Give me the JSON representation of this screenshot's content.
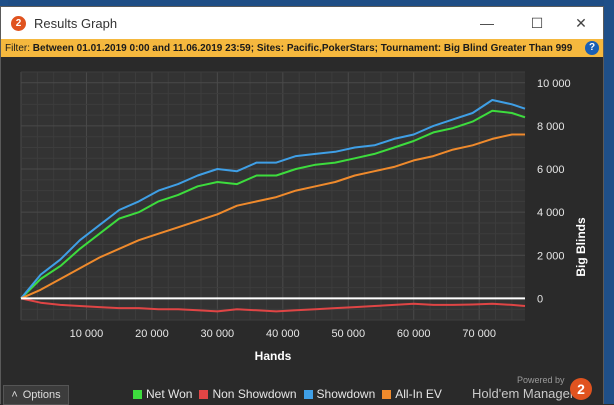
{
  "window": {
    "title": "Results Graph",
    "icon": "hm2-logo-icon",
    "controls": [
      "minimize-icon",
      "maximize-icon",
      "close-icon"
    ]
  },
  "filter": {
    "label": "Filter:",
    "text": "Between 01.01.2019 0:00 and 11.06.2019 23:59; Sites: Pacific,PokerStars; Tournament: Big Blind Greater Than 999",
    "help_icon": "?"
  },
  "footer": {
    "options_label": "Options",
    "powered_by": "Powered by",
    "brand": "Hold'em Manager",
    "brand_logo": "2"
  },
  "chart_data": {
    "type": "line",
    "xlabel": "Hands",
    "ylabel": "Big Blinds",
    "xlim": [
      0,
      77000
    ],
    "ylim": [
      -1000,
      10500
    ],
    "x_ticks": [
      10000,
      20000,
      30000,
      40000,
      50000,
      60000,
      70000
    ],
    "x_tick_labels": [
      "10 000",
      "20 000",
      "30 000",
      "40 000",
      "50 000",
      "60 000",
      "70 000"
    ],
    "y_ticks": [
      0,
      2000,
      4000,
      6000,
      8000,
      10000
    ],
    "y_tick_labels": [
      "0",
      "2 000",
      "4 000",
      "6 000",
      "8 000",
      "10 000"
    ],
    "grid": true,
    "legend_position": "bottom",
    "x": [
      0,
      3000,
      6000,
      9000,
      12000,
      15000,
      18000,
      21000,
      24000,
      27000,
      30000,
      33000,
      36000,
      39000,
      42000,
      45000,
      48000,
      51000,
      54000,
      57000,
      60000,
      63000,
      66000,
      69000,
      72000,
      75000,
      77000
    ],
    "series": [
      {
        "name": "Net Won",
        "color": "#3ddc3d",
        "values": [
          0,
          900,
          1500,
          2300,
          3000,
          3700,
          4000,
          4500,
          4800,
          5200,
          5400,
          5300,
          5700,
          5700,
          6000,
          6200,
          6300,
          6500,
          6700,
          7000,
          7300,
          7700,
          7900,
          8200,
          8700,
          8600,
          8400
        ]
      },
      {
        "name": "Non Showdown",
        "color": "#e04545",
        "values": [
          0,
          -200,
          -300,
          -350,
          -400,
          -450,
          -450,
          -500,
          -500,
          -550,
          -600,
          -500,
          -550,
          -600,
          -550,
          -500,
          -450,
          -400,
          -350,
          -300,
          -250,
          -300,
          -300,
          -280,
          -250,
          -300,
          -350
        ]
      },
      {
        "name": "Showdown",
        "color": "#3f9fe6",
        "values": [
          0,
          1100,
          1800,
          2700,
          3400,
          4100,
          4500,
          5000,
          5300,
          5700,
          6000,
          5900,
          6300,
          6300,
          6600,
          6700,
          6800,
          7000,
          7100,
          7400,
          7600,
          8000,
          8300,
          8600,
          9200,
          9000,
          8800
        ]
      },
      {
        "name": "All-In EV",
        "color": "#ef8a2c",
        "values": [
          0,
          400,
          900,
          1400,
          1900,
          2300,
          2700,
          3000,
          3300,
          3600,
          3900,
          4300,
          4500,
          4700,
          5000,
          5200,
          5400,
          5700,
          5900,
          6100,
          6400,
          6600,
          6900,
          7100,
          7400,
          7600,
          7600
        ]
      }
    ]
  }
}
